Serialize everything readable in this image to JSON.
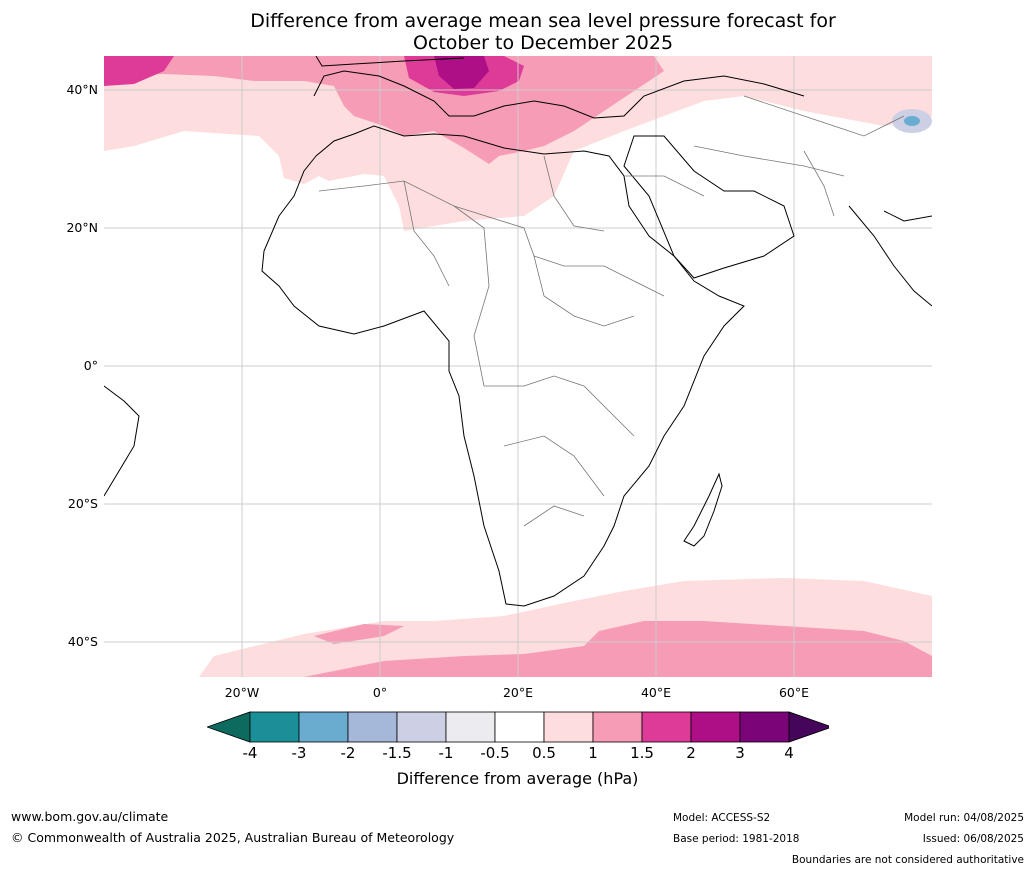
{
  "title_line1": "Difference from average mean sea level pressure forecast for",
  "title_line2": "October to December 2025",
  "y_ticks": [
    "40°N",
    "20°N",
    "0°",
    "20°S",
    "40°S"
  ],
  "x_ticks": [
    "20°W",
    "0°",
    "20°E",
    "40°E",
    "60°E"
  ],
  "colorbar": {
    "labels": [
      "-4",
      "-3",
      "-2",
      "-1.5",
      "-1",
      "-0.5",
      "0.5",
      "1",
      "1.5",
      "2",
      "3",
      "4"
    ],
    "colors": [
      "#0d6a5e",
      "#1b8f98",
      "#6aabd0",
      "#a6b8da",
      "#cdd0e4",
      "#ececf0",
      "#ffffff",
      "#fddddd",
      "#f79cb6",
      "#de3b99",
      "#ae0f86",
      "#7b0478",
      "#45055a"
    ],
    "title": "Difference from average (hPa)"
  },
  "footer": {
    "website": "www.bom.gov.au/climate",
    "copyright": "© Commonwealth of Australia 2025, Australian Bureau of Meteorology",
    "model": "Model: ACCESS-S2",
    "base_period": "Base period: 1981-2018",
    "model_run": "Model run: 04/08/2025",
    "issued": "Issued: 06/08/2025",
    "disclaimer": "Boundaries are not considered authoritative"
  }
}
